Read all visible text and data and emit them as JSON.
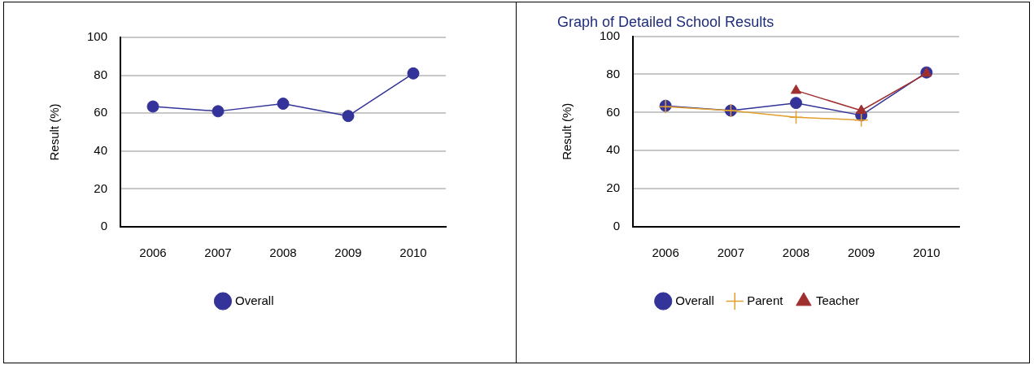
{
  "chart_data": [
    {
      "type": "line",
      "ylabel": "Result (%)",
      "categories": [
        "2006",
        "2007",
        "2008",
        "2009",
        "2010"
      ],
      "ylim": [
        0,
        100
      ],
      "yticks": [
        0,
        20,
        40,
        60,
        80,
        100
      ],
      "grid": "y",
      "legend": "bottom",
      "series": [
        {
          "name": "Overall",
          "color": "#333399",
          "marker": "circle",
          "values": [
            63.5,
            61,
            65,
            58.5,
            81
          ]
        }
      ]
    },
    {
      "type": "line",
      "title": "Graph of Detailed School Results",
      "ylabel": "Result (%)",
      "categories": [
        "2006",
        "2007",
        "2008",
        "2009",
        "2010"
      ],
      "ylim": [
        0,
        100
      ],
      "yticks": [
        0,
        20,
        40,
        60,
        80,
        100
      ],
      "grid": "y",
      "legend": "bottom",
      "series": [
        {
          "name": "Overall",
          "color": "#333399",
          "marker": "circle",
          "values": [
            63.5,
            61,
            65,
            58.5,
            81
          ]
        },
        {
          "name": "Parent",
          "color": "#e0a030",
          "marker": "cross",
          "values": [
            63,
            61,
            57.5,
            56,
            null
          ]
        },
        {
          "name": "Teacher",
          "color": "#a03030",
          "marker": "triangle",
          "values": [
            null,
            null,
            71.5,
            61,
            80.5
          ]
        }
      ]
    }
  ]
}
